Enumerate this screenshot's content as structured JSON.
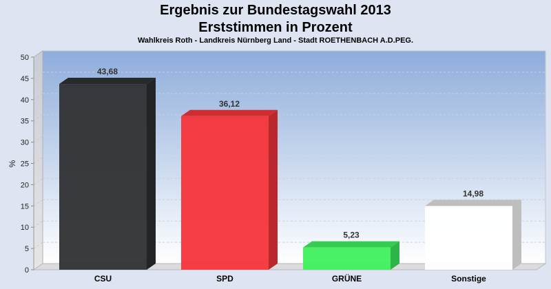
{
  "chart_data": {
    "type": "bar",
    "title": "Ergebnis zur Bundestagswahl 2013",
    "subtitle": "Erststimmen in Prozent",
    "caption": "Wahlkreis Roth - Landkreis Nürnberg Land - Stadt ROETHENBACH A.D.PEG.",
    "xlabel": "",
    "ylabel": "%",
    "ylim": [
      0,
      50
    ],
    "yticks": [
      0,
      5,
      10,
      15,
      20,
      25,
      30,
      35,
      40,
      45,
      50
    ],
    "grid": true,
    "categories": [
      "CSU",
      "SPD",
      "GRÜNE",
      "Sonstige"
    ],
    "values": [
      43.68,
      36.12,
      5.23,
      14.98
    ],
    "value_labels": [
      "43,68",
      "36,12",
      "5,23",
      "14,98"
    ],
    "colors": [
      "#2f3033",
      "#f5353a",
      "#3ef05e",
      "#ffffff"
    ]
  }
}
